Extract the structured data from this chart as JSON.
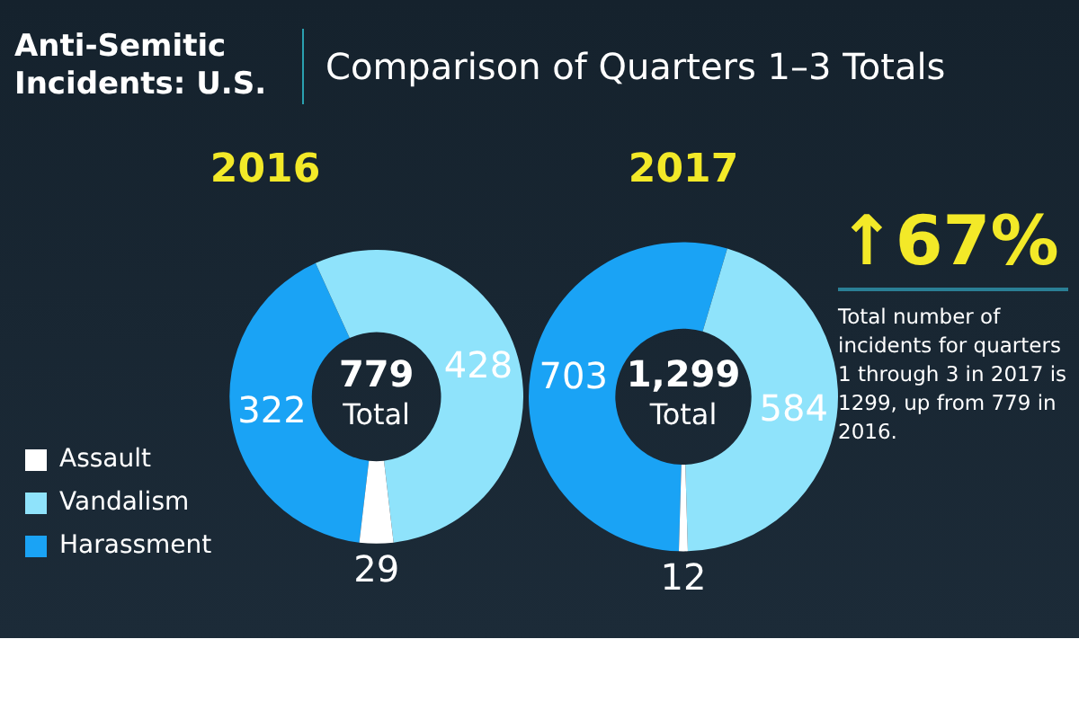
{
  "chart_data": [
    {
      "type": "other",
      "title": "Anti-Semitic Incidents: U.S.",
      "subtitle": "Comparison of Quarters 1–3 Totals"
    },
    {
      "type": "donut",
      "title": "2016",
      "categories": [
        "Harassment",
        "Vandalism",
        "Assault"
      ],
      "values": [
        322,
        428,
        29
      ],
      "colors": [
        "#1aa3f5",
        "#8fe3fb",
        "#ffffff"
      ],
      "data_labels": true,
      "legend": "left",
      "annotations": [
        "779",
        "Total"
      ]
    },
    {
      "type": "donut",
      "title": "2017",
      "categories": [
        null,
        null,
        null
      ],
      "values": [
        703,
        584,
        12
      ],
      "colors": [
        "#1aa3f5",
        "#8fe3fb",
        "#ffffff"
      ],
      "data_labels": true,
      "legend": false,
      "annotations": [
        "1,299",
        "Total"
      ]
    },
    {
      "type": "other",
      "title": "↑67%",
      "annotations": [
        "Total number of incidents for quarters 1 through 3 in 2017 is 1299, up from 779 in 2016."
      ]
    }
  ]
}
